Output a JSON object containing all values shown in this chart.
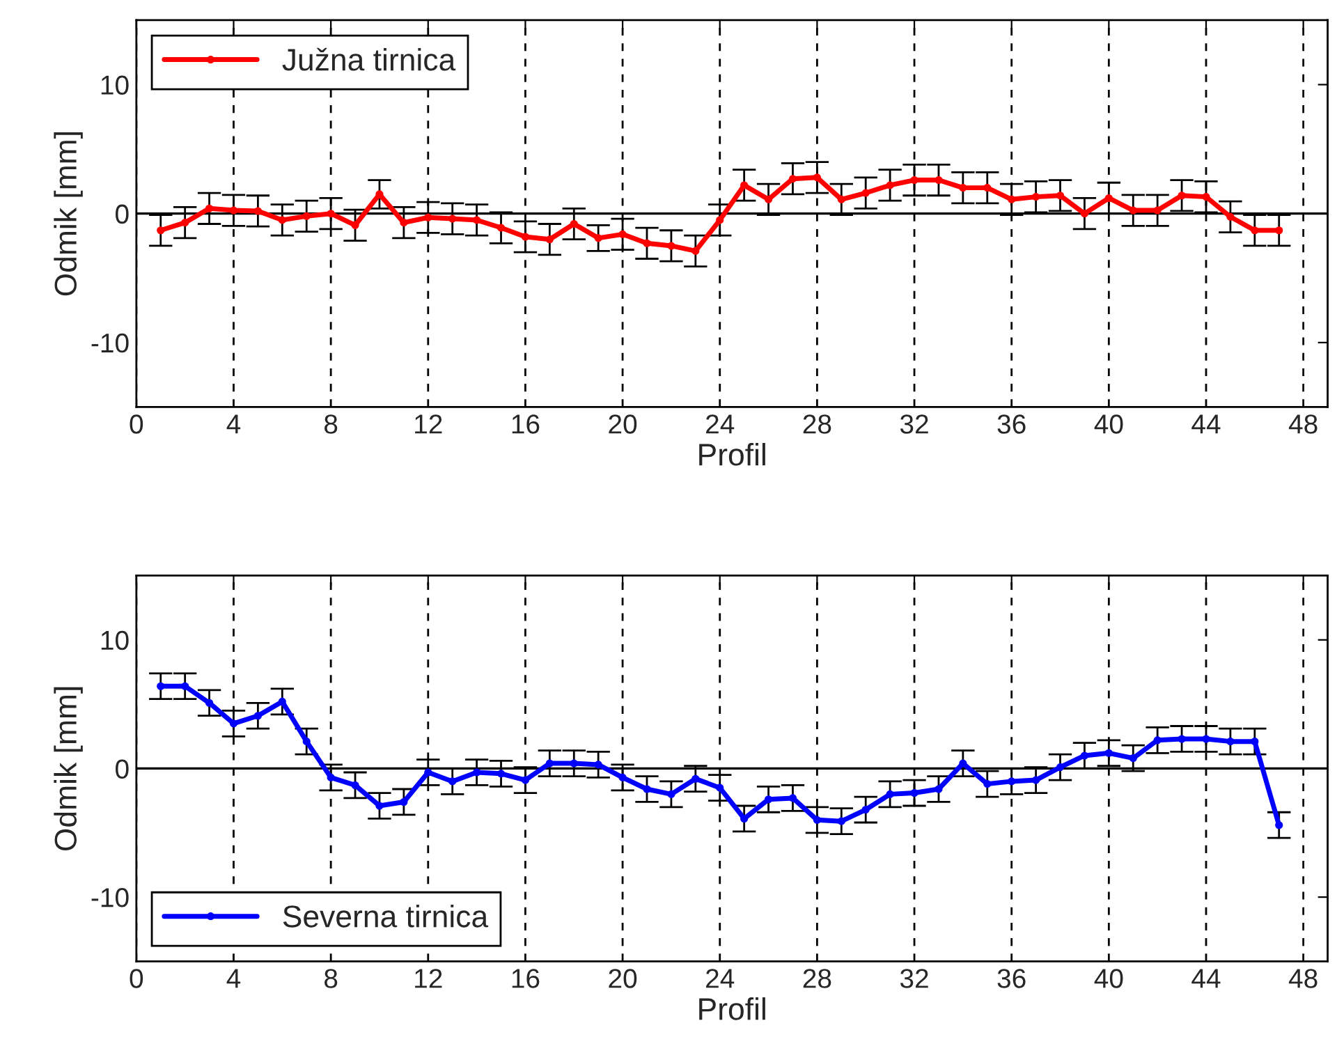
{
  "chart_data": [
    {
      "type": "line",
      "xlabel": "Profil",
      "ylabel": "Odmik [mm]",
      "x": [
        1,
        2,
        3,
        4,
        5,
        6,
        7,
        8,
        9,
        10,
        11,
        12,
        13,
        14,
        15,
        16,
        17,
        18,
        19,
        20,
        21,
        22,
        23,
        24,
        25,
        26,
        27,
        28,
        29,
        30,
        31,
        32,
        33,
        34,
        35,
        36,
        37,
        38,
        39,
        40,
        41,
        42,
        43,
        44,
        45,
        46,
        47
      ],
      "series": [
        {
          "name": "Južna tirnica",
          "color": "#ff0000",
          "values": [
            -1.3,
            -0.7,
            0.4,
            0.25,
            0.2,
            -0.5,
            -0.2,
            0,
            -0.9,
            1.5,
            -0.7,
            -0.3,
            -0.4,
            -0.5,
            -1.1,
            -1.8,
            -2.0,
            -0.8,
            -1.9,
            -1.6,
            -2.3,
            -2.5,
            -2.9,
            -0.5,
            2.2,
            1.1,
            2.7,
            2.8,
            1.1,
            1.6,
            2.2,
            2.6,
            2.6,
            2.0,
            2.0,
            1.1,
            1.3,
            1.4,
            0,
            1.2,
            0.25,
            0.25,
            1.4,
            1.3,
            -0.25,
            -1.3,
            -1.3
          ],
          "errors": [
            1.2,
            1.2,
            1.2,
            1.2,
            1.2,
            1.2,
            1.2,
            1.2,
            1.2,
            1.1,
            1.2,
            1.2,
            1.2,
            1.2,
            1.2,
            1.2,
            1.2,
            1.2,
            1.0,
            1.2,
            1.2,
            1.2,
            1.2,
            1.2,
            1.2,
            1.2,
            1.2,
            1.2,
            1.2,
            1.2,
            1.2,
            1.2,
            1.2,
            1.2,
            1.2,
            1.2,
            1.2,
            1.2,
            1.2,
            1.2,
            1.2,
            1.2,
            1.2,
            1.2,
            1.2,
            1.2,
            1.2
          ]
        }
      ],
      "xlim": [
        0,
        49
      ],
      "xticks": [
        0,
        4,
        8,
        12,
        16,
        20,
        24,
        28,
        32,
        36,
        40,
        44,
        48
      ],
      "ylim": [
        -15,
        15
      ],
      "yticks": [
        -10,
        0,
        10
      ],
      "grid": "x",
      "legend": "top left",
      "marker": "circle",
      "line_style": "solid",
      "ref_lines": [
        {
          "axis": "y",
          "value": 0,
          "color": "#000000"
        }
      ]
    },
    {
      "type": "line",
      "xlabel": "Profil",
      "ylabel": "Odmik [mm]",
      "x": [
        1,
        2,
        3,
        4,
        5,
        6,
        7,
        8,
        9,
        10,
        11,
        12,
        13,
        14,
        15,
        16,
        17,
        18,
        19,
        20,
        21,
        22,
        23,
        24,
        25,
        26,
        27,
        28,
        29,
        30,
        31,
        32,
        33,
        34,
        35,
        36,
        37,
        38,
        39,
        40,
        41,
        42,
        43,
        44,
        45,
        46,
        47
      ],
      "series": [
        {
          "name": "Severna tirnica",
          "color": "#0000ff",
          "values": [
            6.4,
            6.4,
            5.1,
            3.5,
            4.1,
            5.2,
            2.1,
            -0.7,
            -1.3,
            -2.9,
            -2.6,
            -0.3,
            -1.0,
            -0.3,
            -0.4,
            -0.9,
            0.4,
            0.4,
            0.3,
            -0.7,
            -1.6,
            -2.0,
            -0.8,
            -1.5,
            -3.9,
            -2.4,
            -2.3,
            -4.0,
            -4.1,
            -3.2,
            -2.0,
            -1.9,
            -1.6,
            0.4,
            -1.2,
            -1.0,
            -0.9,
            0.1,
            1.0,
            1.2,
            0.8,
            2.2,
            2.3,
            2.3,
            2.1,
            2.1,
            -4.4
          ],
          "errors": [
            1.0,
            1.0,
            1.0,
            1.0,
            1.0,
            1.0,
            1.0,
            1.0,
            1.0,
            1.0,
            1.0,
            1.0,
            1.0,
            1.0,
            1.0,
            1.0,
            1.0,
            1.0,
            1.0,
            1.0,
            1.0,
            1.0,
            1.0,
            1.0,
            1.0,
            1.0,
            1.0,
            1.0,
            1.0,
            1.0,
            1.0,
            1.0,
            1.0,
            1.0,
            1.0,
            1.0,
            1.0,
            1.0,
            1.0,
            1.0,
            1.0,
            1.0,
            1.0,
            1.0,
            1.0,
            1.0,
            1.0
          ]
        }
      ],
      "xlim": [
        0,
        49
      ],
      "xticks": [
        0,
        4,
        8,
        12,
        16,
        20,
        24,
        28,
        32,
        36,
        40,
        44,
        48
      ],
      "ylim": [
        -15,
        15
      ],
      "yticks": [
        -10,
        0,
        10
      ],
      "grid": "x",
      "legend": "bottom left",
      "marker": "circle",
      "line_style": "solid",
      "ref_lines": [
        {
          "axis": "y",
          "value": 0,
          "color": "#000000"
        }
      ]
    }
  ]
}
